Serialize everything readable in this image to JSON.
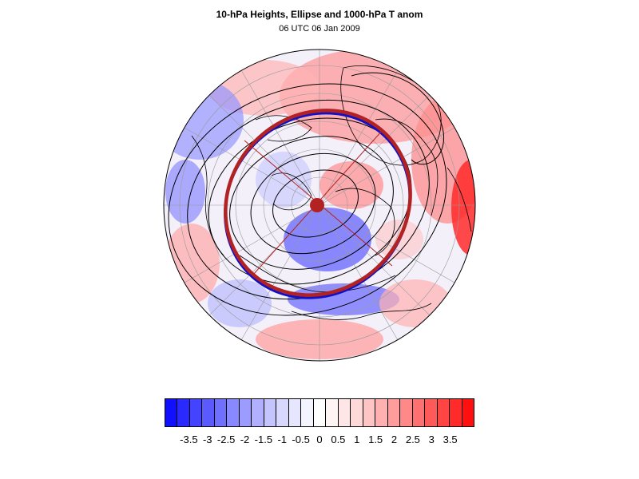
{
  "title": "10-hPa Heights, Ellipse and 1000-hPa T anom",
  "subtitle": "06 UTC 06 Jan 2009",
  "colors": {
    "land_outline": "#000000",
    "ellipse_red": "#b22222",
    "ellipse_blue": "#1010c8",
    "height_contour": "#000000",
    "grid": "#9a9a9a"
  },
  "colorbar": {
    "colors": [
      "#1010ff",
      "#2a2aff",
      "#4444ff",
      "#5a5aff",
      "#7070ff",
      "#8888ff",
      "#9c9cff",
      "#b0b0ff",
      "#c4c4ff",
      "#d8d8ff",
      "#e6e6ff",
      "#f4f4ff",
      "#ffffff",
      "#fff4f4",
      "#ffe6e6",
      "#ffd8d8",
      "#ffc4c4",
      "#ffb0b0",
      "#ff9c9c",
      "#ff8888",
      "#ff7070",
      "#ff5a5a",
      "#ff4444",
      "#ff2a2a",
      "#ff1010"
    ],
    "tick_labels": [
      "-3.5",
      "-3",
      "-2.5",
      "-2",
      "-1.5",
      "-1",
      "-0.5",
      "0",
      "0.5",
      "1",
      "1.5",
      "2",
      "2.5",
      "3",
      "3.5"
    ],
    "tick_values": [
      -3.5,
      -3,
      -2.5,
      -2,
      -1.5,
      -1,
      -0.5,
      0,
      0.5,
      1,
      1.5,
      2,
      2.5,
      3,
      3.5
    ],
    "range": [
      -4.0,
      4.0
    ]
  }
}
